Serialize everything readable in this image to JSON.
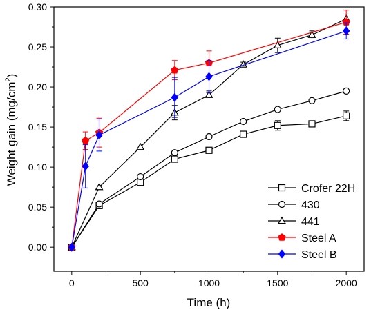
{
  "chart_data": {
    "type": "line",
    "title": "",
    "xlabel": "Time (h)",
    "ylabel_main": "Weight gain (mg/cm",
    "ylabel_sup": "2",
    "ylabel_end": ")",
    "xlim": [
      -130,
      2130
    ],
    "ylim": [
      -0.03,
      0.3
    ],
    "x_ticks": [
      0,
      500,
      1000,
      1500,
      2000
    ],
    "x_tick_labels": [
      "0",
      "500",
      "1000",
      "1500",
      "2000"
    ],
    "y_ticks": [
      0.0,
      0.05,
      0.1,
      0.15,
      0.2,
      0.25,
      0.3
    ],
    "y_tick_labels": [
      "0.00",
      "0.05",
      "0.10",
      "0.15",
      "0.20",
      "0.25",
      "0.30"
    ],
    "grid": false,
    "legend_position": "bottom-right",
    "series": [
      {
        "name": "Crofer 22H",
        "marker": "square",
        "color": "#000000",
        "fill": "#ffffff",
        "x": [
          0,
          200,
          500,
          750,
          1000,
          1250,
          1500,
          1750,
          2000
        ],
        "y": [
          0.0,
          0.052,
          0.081,
          0.11,
          0.121,
          0.141,
          0.152,
          0.154,
          0.164
        ],
        "err": [
          0,
          0,
          0,
          0,
          0,
          0,
          0.006,
          0,
          0.006
        ]
      },
      {
        "name": "430",
        "marker": "circle",
        "color": "#000000",
        "fill": "#ffffff",
        "x": [
          0,
          200,
          500,
          750,
          1000,
          1250,
          1500,
          1750,
          2000
        ],
        "y": [
          0.0,
          0.054,
          0.088,
          0.118,
          0.138,
          0.157,
          0.172,
          0.183,
          0.195
        ],
        "err": [
          0,
          0,
          0,
          0,
          0,
          0,
          0,
          0,
          0
        ]
      },
      {
        "name": "441",
        "marker": "triangle",
        "color": "#000000",
        "fill": "#ffffff",
        "x": [
          0,
          200,
          500,
          750,
          1000,
          1250,
          1500,
          1750,
          2000
        ],
        "y": [
          0.0,
          0.075,
          0.125,
          0.168,
          0.19,
          0.228,
          0.252,
          0.265,
          0.285
        ],
        "err": [
          0,
          0,
          0,
          0.009,
          0.005,
          0.003,
          0.009,
          0.005,
          0.006
        ]
      },
      {
        "name": "Steel A",
        "marker": "pentagon",
        "color": "#ff0000",
        "fill": "#ff0000",
        "x": [
          0,
          100,
          200,
          750,
          1000,
          2000
        ],
        "y": [
          0.0,
          0.133,
          0.143,
          0.221,
          0.23,
          0.281
        ],
        "err": [
          0,
          0.011,
          0.018,
          0.012,
          0.015,
          0.015
        ]
      },
      {
        "name": "Steel B",
        "marker": "diamond",
        "color": "#0000ff",
        "fill": "#0000ff",
        "x": [
          0,
          100,
          200,
          750,
          1000,
          2000
        ],
        "y": [
          0.0,
          0.101,
          0.14,
          0.187,
          0.213,
          0.27
        ],
        "err": [
          0,
          0.027,
          0.02,
          0.025,
          0.02,
          0.01
        ]
      }
    ]
  }
}
